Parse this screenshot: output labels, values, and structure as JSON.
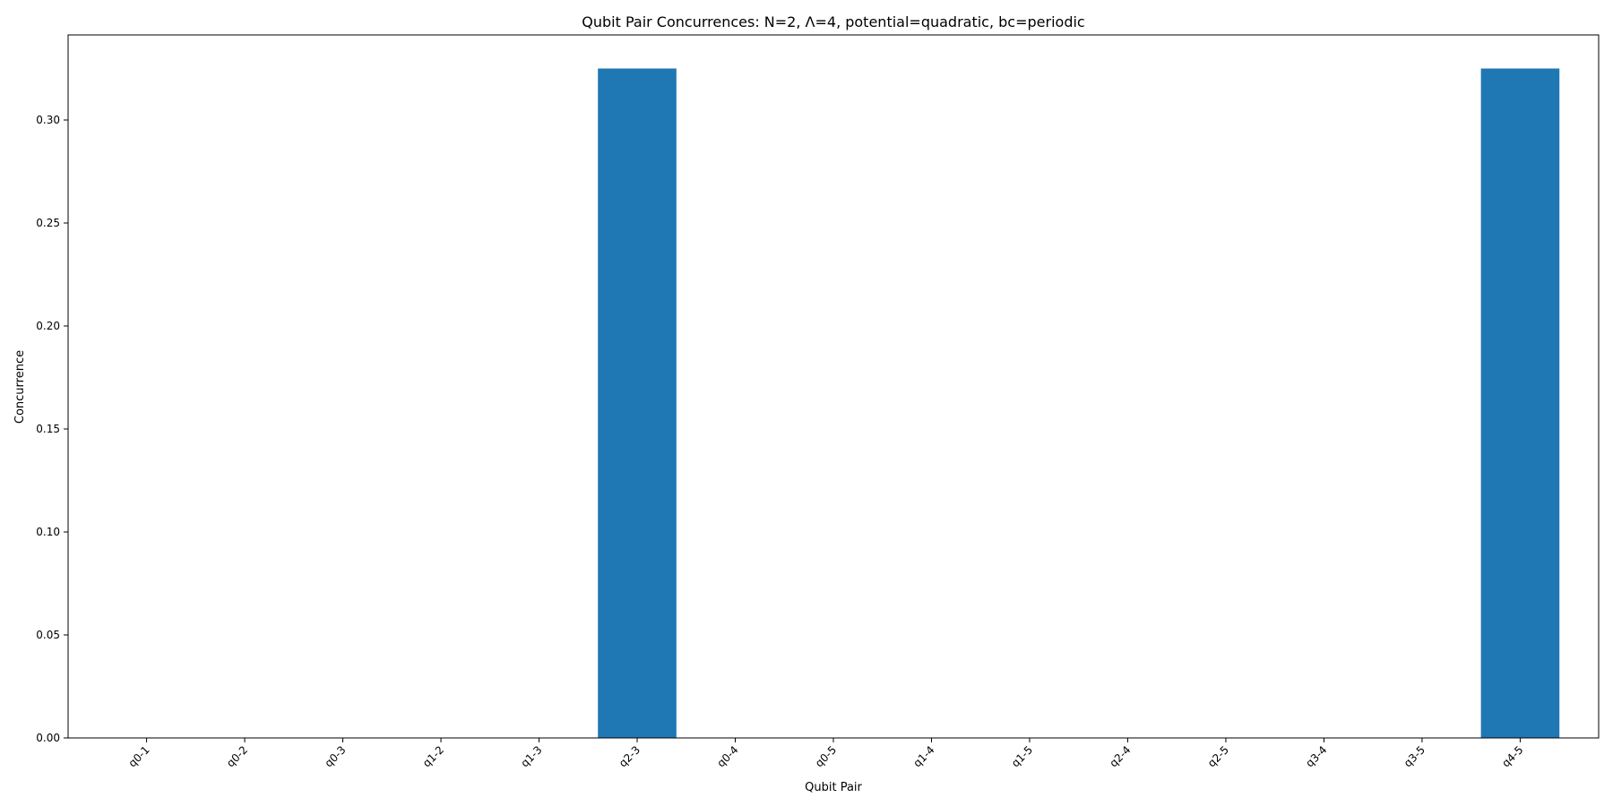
{
  "chart_data": {
    "type": "bar",
    "title": "Qubit Pair Concurrences: N=2, Λ=4, potential=quadratic, bc=periodic",
    "xlabel": "Qubit Pair",
    "ylabel": "Concurrence",
    "categories": [
      "q0-1",
      "q0-2",
      "q0-3",
      "q1-2",
      "q1-3",
      "q2-3",
      "q0-4",
      "q0-5",
      "q1-4",
      "q1-5",
      "q2-4",
      "q2-5",
      "q3-4",
      "q3-5",
      "q4-5"
    ],
    "values": [
      0,
      0,
      0,
      0,
      0,
      0.325,
      0,
      0,
      0,
      0,
      0,
      0,
      0,
      0,
      0.325
    ],
    "ylim": [
      0,
      0.3413
    ],
    "yticks": [
      "0.00",
      "0.05",
      "0.10",
      "0.15",
      "0.20",
      "0.25",
      "0.30"
    ],
    "ytick_values": [
      0,
      0.05,
      0.1,
      0.15,
      0.2,
      0.25,
      0.3
    ],
    "grid": false,
    "colors": {
      "bar": "#1f77b4",
      "axis": "#000000"
    }
  }
}
